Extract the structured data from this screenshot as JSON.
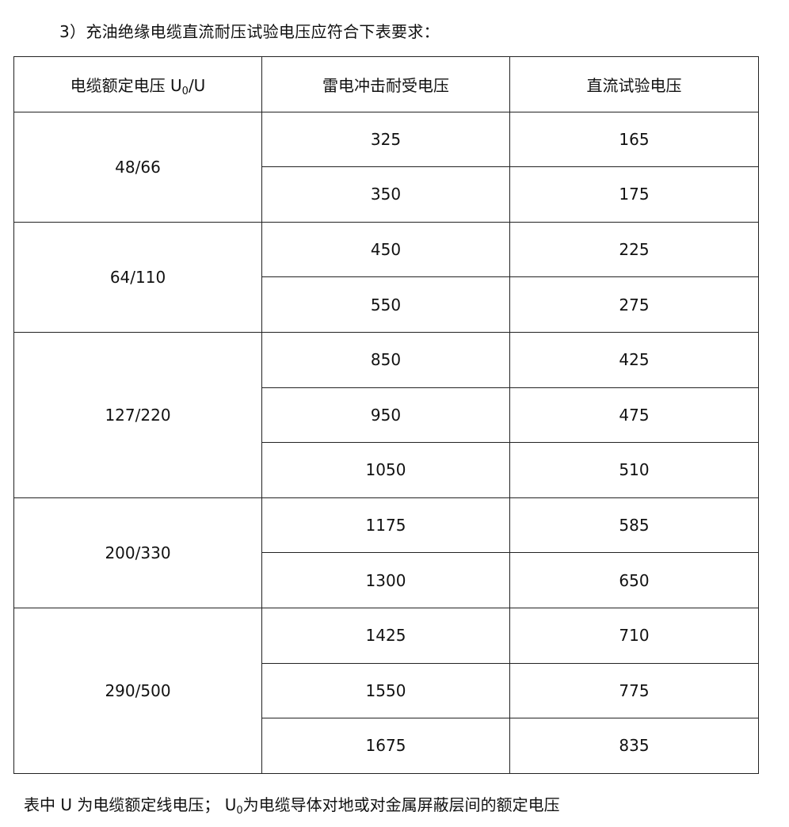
{
  "title": "3）充油绝缘电缆直流耐压试验电压应符合下表要求：",
  "table": {
    "headers": {
      "rated_pre": "电缆额定电压 U",
      "rated_sub": "0",
      "rated_post": "/U",
      "impulse": "雷电冲击耐受电压",
      "dc": "直流试验电压"
    },
    "groups": [
      {
        "rated": "48/66",
        "rows": [
          {
            "impulse": "325",
            "dc": "165"
          },
          {
            "impulse": "350",
            "dc": "175"
          }
        ]
      },
      {
        "rated": "64/110",
        "rows": [
          {
            "impulse": "450",
            "dc": "225"
          },
          {
            "impulse": "550",
            "dc": "275"
          }
        ]
      },
      {
        "rated": "127/220",
        "rows": [
          {
            "impulse": "850",
            "dc": "425"
          },
          {
            "impulse": "950",
            "dc": "475"
          },
          {
            "impulse": "1050",
            "dc": "510"
          }
        ]
      },
      {
        "rated": "200/330",
        "rows": [
          {
            "impulse": "1175",
            "dc": "585"
          },
          {
            "impulse": "1300",
            "dc": "650"
          }
        ]
      },
      {
        "rated": "290/500",
        "rows": [
          {
            "impulse": "1425",
            "dc": "710"
          },
          {
            "impulse": "1550",
            "dc": "775"
          },
          {
            "impulse": "1675",
            "dc": "835"
          }
        ]
      }
    ]
  },
  "footer": {
    "pre": "表中 U 为电缆额定线电压； U",
    "sub": "0",
    "post": "为电缆导体对地或对金属屏蔽层间的额定电压"
  }
}
